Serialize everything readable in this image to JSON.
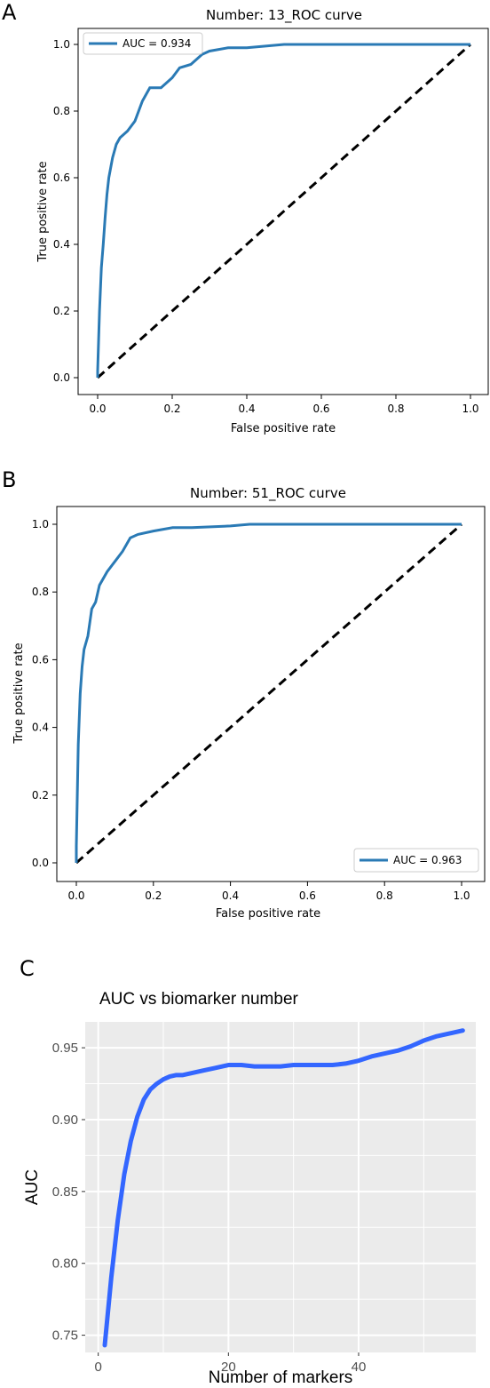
{
  "panels": [
    "A",
    "B",
    "C"
  ],
  "chart_data": [
    {
      "type": "line",
      "title": "Number: 13_ROC curve",
      "xlabel": "False positive rate",
      "ylabel": "True positive rate",
      "xlim": [
        0.0,
        1.0
      ],
      "ylim": [
        0.0,
        1.0
      ],
      "xticks": [
        "0.0",
        "0.2",
        "0.4",
        "0.6",
        "0.8",
        "1.0"
      ],
      "yticks": [
        "0.0",
        "0.2",
        "0.4",
        "0.6",
        "0.8",
        "1.0"
      ],
      "legend_position": "top-left",
      "colors": {
        "roc": "#2a7ab5",
        "chance": "#000000"
      },
      "series": [
        {
          "name": "AUC = 0.934",
          "x": [
            0.0,
            0.0,
            0.005,
            0.01,
            0.015,
            0.02,
            0.025,
            0.03,
            0.04,
            0.05,
            0.06,
            0.08,
            0.1,
            0.12,
            0.14,
            0.15,
            0.17,
            0.2,
            0.22,
            0.25,
            0.28,
            0.3,
            0.35,
            0.4,
            0.45,
            0.5,
            0.55,
            0.6,
            0.7,
            0.8,
            0.9,
            1.0
          ],
          "y": [
            0.0,
            0.02,
            0.2,
            0.33,
            0.4,
            0.48,
            0.55,
            0.6,
            0.66,
            0.7,
            0.72,
            0.74,
            0.77,
            0.83,
            0.87,
            0.87,
            0.87,
            0.9,
            0.93,
            0.94,
            0.97,
            0.98,
            0.99,
            0.99,
            0.995,
            1.0,
            1.0,
            1.0,
            1.0,
            1.0,
            1.0,
            1.0
          ]
        },
        {
          "name": "",
          "x": [
            0.0,
            1.0
          ],
          "y": [
            0.0,
            1.0
          ],
          "dashed": true
        }
      ]
    },
    {
      "type": "line",
      "title": "Number: 51_ROC curve",
      "xlabel": "False positive rate",
      "ylabel": "True positive rate",
      "xlim": [
        0.0,
        1.0
      ],
      "ylim": [
        0.0,
        1.0
      ],
      "xticks": [
        "0.0",
        "0.2",
        "0.4",
        "0.6",
        "0.8",
        "1.0"
      ],
      "yticks": [
        "0.0",
        "0.2",
        "0.4",
        "0.6",
        "0.8",
        "1.0"
      ],
      "legend_position": "bottom-right",
      "colors": {
        "roc": "#2a7ab5",
        "chance": "#000000"
      },
      "series": [
        {
          "name": "AUC = 0.963",
          "x": [
            0.0,
            0.0,
            0.005,
            0.01,
            0.015,
            0.02,
            0.03,
            0.04,
            0.05,
            0.06,
            0.08,
            0.1,
            0.12,
            0.14,
            0.16,
            0.2,
            0.25,
            0.3,
            0.4,
            0.45,
            0.5,
            0.6,
            0.8,
            1.0
          ],
          "y": [
            0.0,
            0.05,
            0.35,
            0.5,
            0.58,
            0.63,
            0.67,
            0.75,
            0.77,
            0.82,
            0.86,
            0.89,
            0.92,
            0.96,
            0.97,
            0.98,
            0.99,
            0.99,
            0.995,
            1.0,
            1.0,
            1.0,
            1.0,
            1.0
          ]
        },
        {
          "name": "",
          "x": [
            0.0,
            1.0
          ],
          "y": [
            0.0,
            1.0
          ],
          "dashed": true
        }
      ]
    },
    {
      "type": "line",
      "title": "AUC vs biomarker number",
      "xlabel": "Number of markers",
      "ylabel": "AUC",
      "xlim": [
        -2,
        58
      ],
      "ylim": [
        0.738,
        0.968
      ],
      "xticks": [
        0,
        20,
        40
      ],
      "yticks": [
        "0.75",
        "0.80",
        "0.85",
        "0.90",
        "0.95"
      ],
      "grid": true,
      "colors": {
        "line": "#3366ff",
        "panel": "#ebebeb",
        "grid": "#ffffff"
      },
      "series": [
        {
          "name": "",
          "x": [
            1,
            2,
            3,
            4,
            5,
            6,
            7,
            8,
            9,
            10,
            11,
            12,
            13,
            14,
            15,
            16,
            18,
            20,
            22,
            24,
            26,
            28,
            30,
            32,
            34,
            36,
            38,
            40,
            42,
            44,
            46,
            48,
            50,
            52,
            54,
            56
          ],
          "y": [
            0.743,
            0.79,
            0.83,
            0.862,
            0.885,
            0.902,
            0.914,
            0.921,
            0.925,
            0.928,
            0.93,
            0.931,
            0.931,
            0.932,
            0.933,
            0.934,
            0.936,
            0.938,
            0.938,
            0.937,
            0.937,
            0.937,
            0.938,
            0.938,
            0.938,
            0.938,
            0.939,
            0.941,
            0.944,
            0.946,
            0.948,
            0.951,
            0.955,
            0.958,
            0.96,
            0.962
          ]
        }
      ]
    }
  ]
}
